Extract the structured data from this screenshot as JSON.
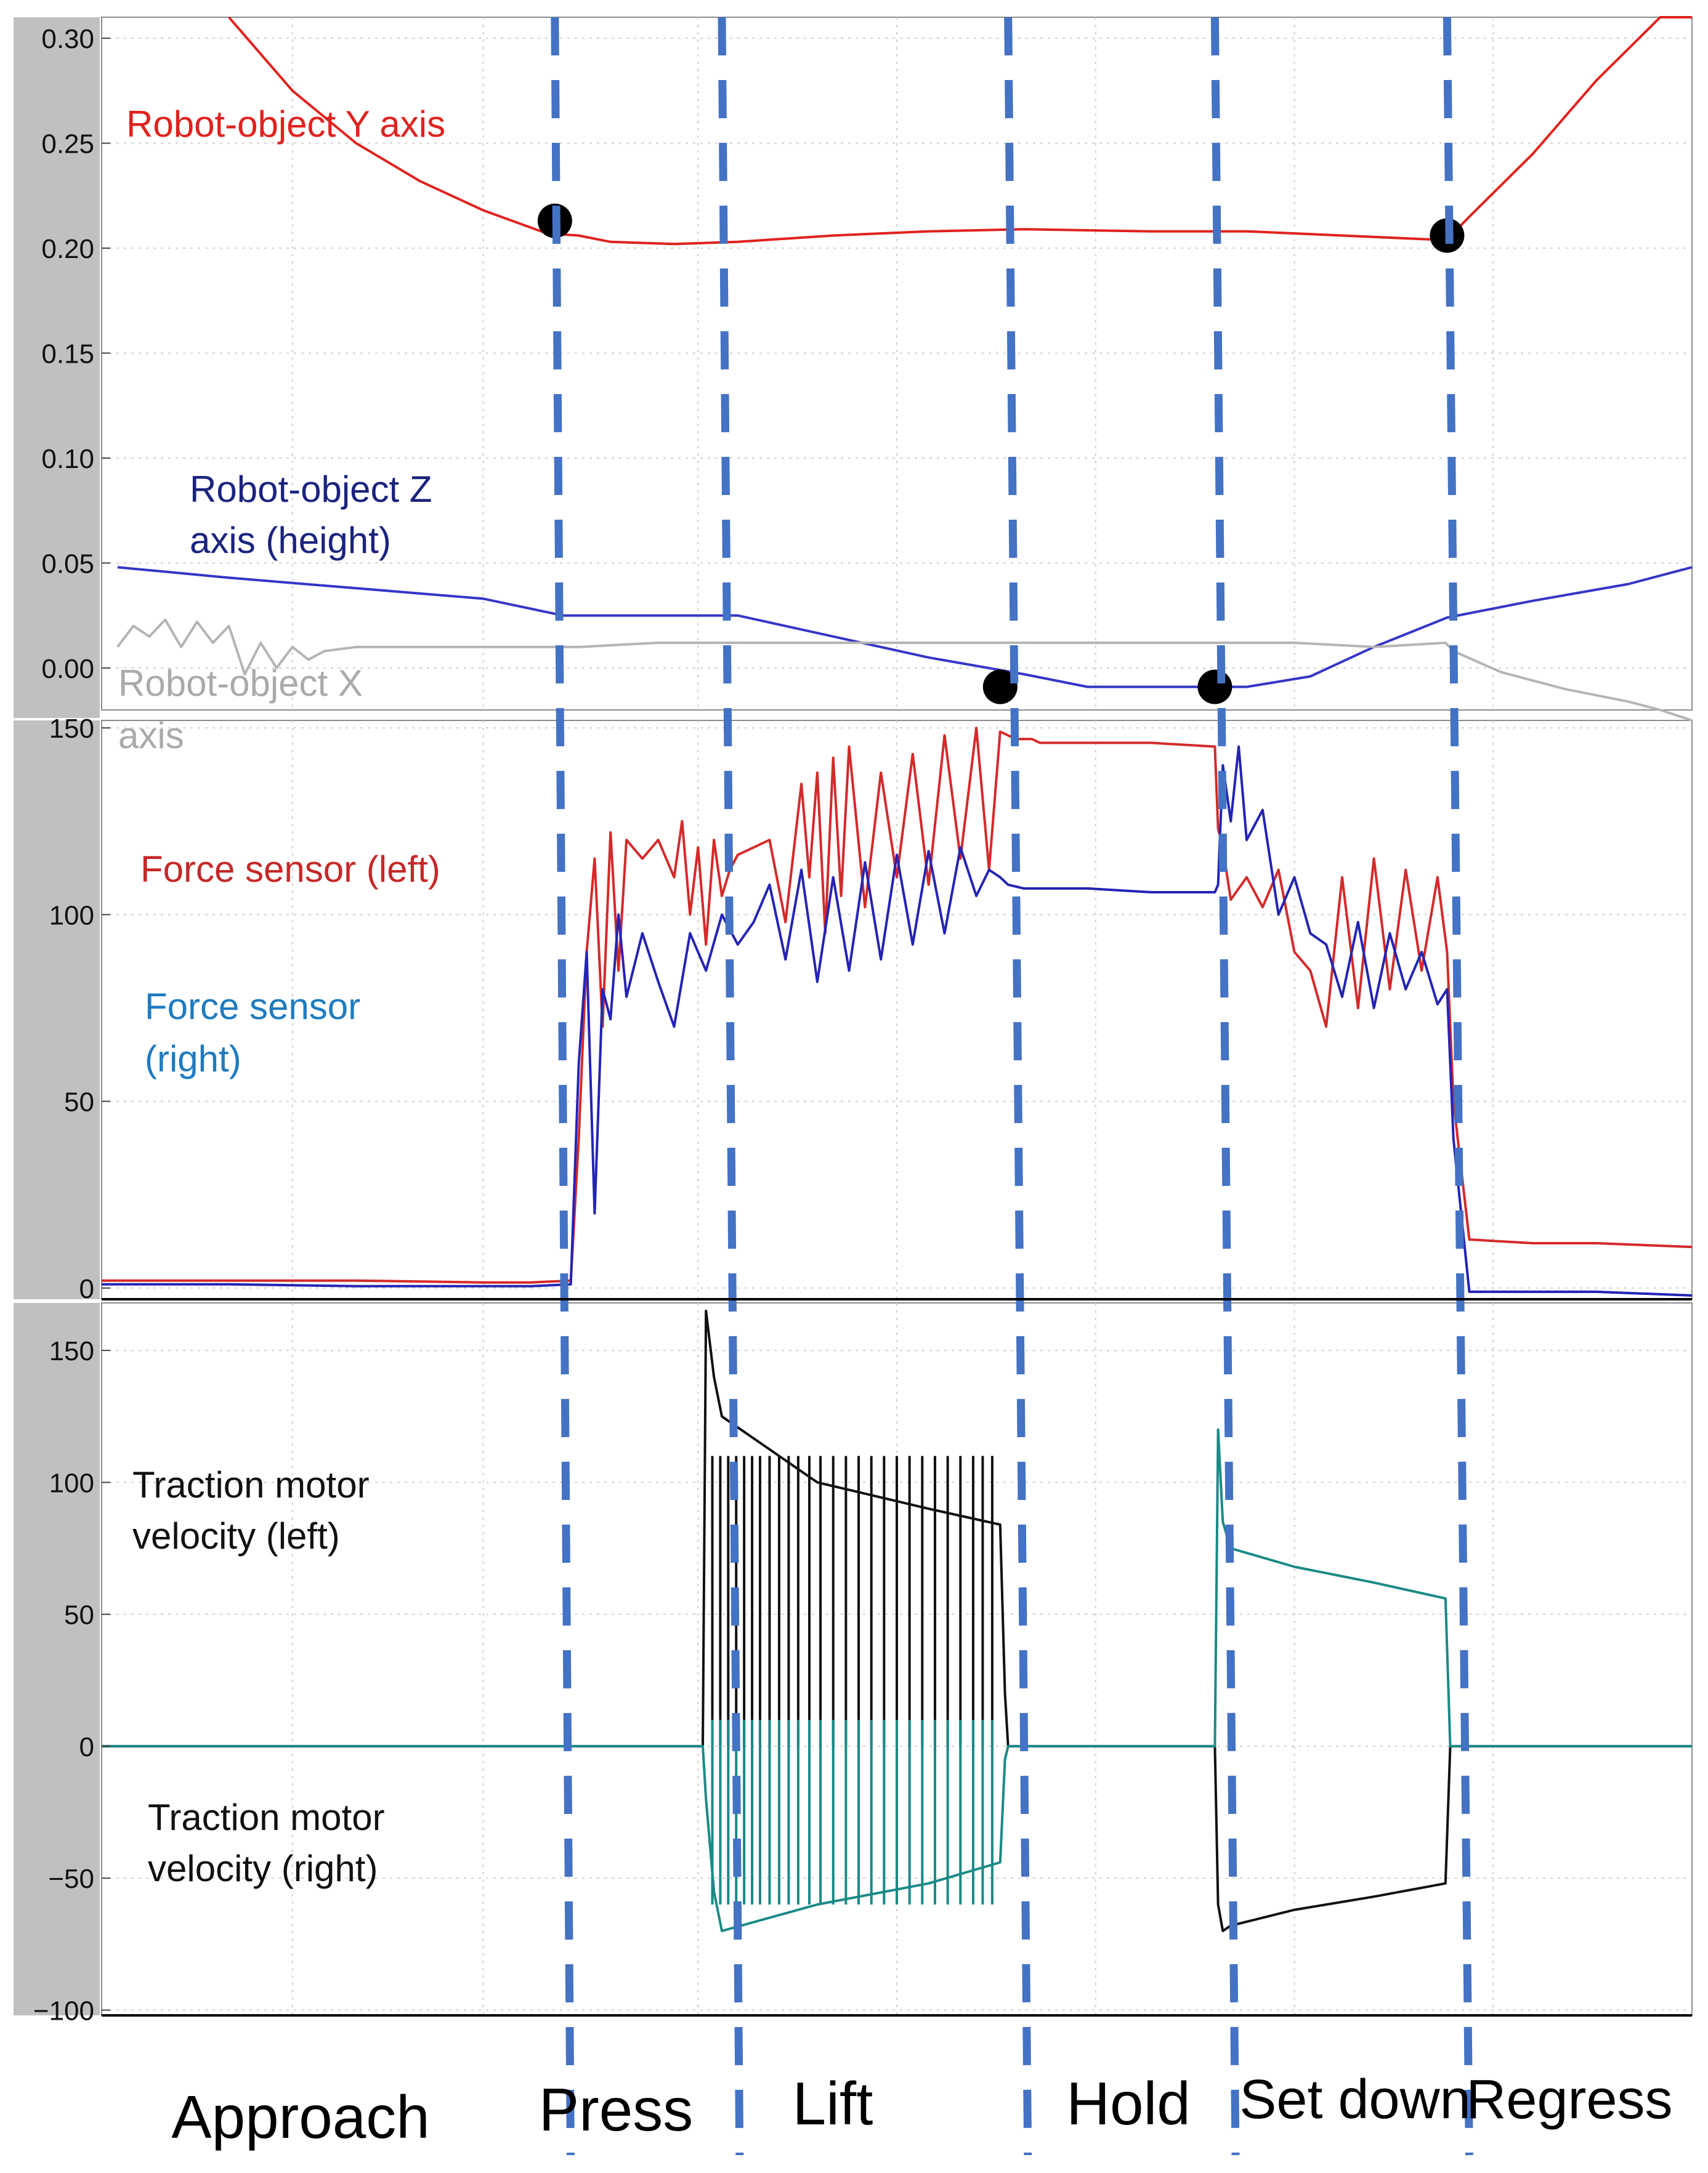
{
  "chart_data": [
    {
      "type": "line",
      "panel": "top",
      "xlim": [
        0,
        100
      ],
      "ylim": [
        -0.02,
        0.31
      ],
      "yticks": [
        "0.30",
        "0.25",
        "0.20",
        "0.15",
        "0.10",
        "0.05",
        "0.00"
      ],
      "ytick_values": [
        0.3,
        0.25,
        0.2,
        0.15,
        0.1,
        0.05,
        0.0
      ],
      "grid": true,
      "series": [
        {
          "name": "Robot-object Y axis",
          "label": "Robot-object Y axis",
          "color": "#e0221e",
          "x": [
            8,
            12,
            16,
            20,
            24,
            28,
            30,
            32,
            36,
            40,
            46,
            52,
            58,
            66,
            72,
            78,
            84,
            84.6,
            86,
            90,
            94,
            98,
            100
          ],
          "y": [
            0.31,
            0.275,
            0.25,
            0.232,
            0.218,
            0.207,
            0.206,
            0.203,
            0.202,
            0.203,
            0.206,
            0.208,
            0.209,
            0.208,
            0.208,
            0.206,
            0.204,
            0.204,
            0.215,
            0.245,
            0.28,
            0.31,
            0.31
          ]
        },
        {
          "name": "Robot-object Z axis (height)",
          "label_line1": "Robot-object Z",
          "label_line2": "axis  (height)",
          "color": "#3535c8",
          "x": [
            1,
            8,
            16,
            24,
            29,
            35,
            40,
            46,
            52,
            58,
            62,
            66,
            72,
            76,
            80,
            84.6,
            90,
            96,
            100
          ],
          "y": [
            0.048,
            0.043,
            0.038,
            0.033,
            0.025,
            0.025,
            0.025,
            0.015,
            0.005,
            -0.003,
            -0.009,
            -0.009,
            -0.009,
            -0.004,
            0.01,
            0.024,
            0.032,
            0.04,
            0.048
          ]
        },
        {
          "name": "Robot-object X axis",
          "label_line1": "Robot-object X",
          "label_line2": "axis",
          "color": "#b4b4b4",
          "x": [
            1,
            2,
            3,
            4,
            5,
            6,
            7,
            8,
            9,
            10,
            11,
            12,
            13,
            14,
            16,
            20,
            25,
            30,
            35,
            40,
            45,
            50,
            55,
            60,
            65,
            70,
            75,
            80,
            84.5,
            85,
            88,
            92,
            96,
            98,
            100
          ],
          "y": [
            0.01,
            0.02,
            0.015,
            0.023,
            0.01,
            0.022,
            0.012,
            0.02,
            -0.003,
            0.012,
            0.0,
            0.01,
            0.004,
            0.008,
            0.01,
            0.01,
            0.01,
            0.01,
            0.012,
            0.012,
            0.012,
            0.012,
            0.012,
            0.012,
            0.012,
            0.012,
            0.012,
            0.01,
            0.012,
            0.008,
            -0.002,
            -0.01,
            -0.016,
            -0.02,
            -0.025
          ]
        }
      ],
      "markers": [
        {
          "x": 28.5,
          "y": 0.213
        },
        {
          "x": 84.6,
          "y": 0.206
        },
        {
          "x": 56.5,
          "y": -0.009
        },
        {
          "x": 70,
          "y": -0.009
        }
      ]
    },
    {
      "type": "line",
      "panel": "middle",
      "xlim": [
        0,
        100
      ],
      "ylim": [
        -3,
        152
      ],
      "yticks": [
        "150",
        "100",
        "50",
        "0"
      ],
      "ytick_values": [
        150,
        100,
        50,
        0
      ],
      "grid": true,
      "series": [
        {
          "name": "Force sensor (left)",
          "label": "Force sensor (left)",
          "color": "#d42a2a",
          "x": [
            0,
            8,
            16,
            24,
            27,
            29.5,
            30.0,
            30.5,
            31.0,
            31.5,
            32.0,
            32.5,
            33.0,
            34,
            35,
            36,
            36.5,
            37,
            37.5,
            38,
            38.5,
            39,
            39.5,
            40,
            41,
            42,
            43,
            44,
            44.5,
            45,
            45.5,
            46,
            46.5,
            47,
            48,
            49,
            50,
            51,
            52,
            53,
            54,
            55,
            55.8,
            56.5,
            57,
            57.5,
            58,
            58.5,
            59,
            62,
            66,
            70,
            70.2,
            70.5,
            71,
            72,
            73,
            74,
            75,
            76,
            77,
            78,
            79,
            80,
            81,
            82,
            83,
            84,
            84.6,
            85,
            86,
            90,
            94,
            100
          ],
          "y": [
            2,
            2,
            2,
            1.5,
            1.5,
            2,
            40,
            90,
            115,
            70,
            122,
            85,
            120,
            115,
            120,
            110,
            125,
            100,
            118,
            92,
            120,
            105,
            112,
            116,
            118,
            120,
            98,
            135,
            110,
            138,
            95,
            142,
            105,
            145,
            102,
            138,
            110,
            143,
            108,
            148,
            115,
            150,
            112,
            149,
            148,
            147,
            147,
            147,
            146,
            146,
            146,
            145,
            123,
            118,
            104,
            110,
            102,
            112,
            90,
            85,
            70,
            110,
            75,
            115,
            80,
            112,
            85,
            110,
            90,
            50,
            13,
            12,
            12,
            11
          ]
        },
        {
          "name": "Force sensor (right)",
          "label_line1": "Force sensor",
          "label_line2": "(right)",
          "color": "#2424b4",
          "x": [
            0,
            8,
            16,
            24,
            27,
            29.5,
            30.0,
            30.5,
            31.0,
            31.5,
            32.0,
            32.5,
            33.0,
            34,
            35,
            36,
            37,
            38,
            39,
            40,
            41,
            42,
            43,
            44,
            45,
            46,
            47,
            48,
            49,
            50,
            51,
            52,
            53,
            54,
            55,
            55.8,
            56.5,
            57,
            58,
            62,
            66,
            70,
            70.2,
            70.5,
            71,
            71.5,
            72,
            73,
            74,
            75,
            76,
            77,
            78,
            79,
            80,
            81,
            82,
            83,
            84,
            84.6,
            85,
            86,
            90,
            94,
            100
          ],
          "y": [
            1,
            1,
            0.5,
            0.5,
            0.5,
            1,
            60,
            90,
            20,
            80,
            72,
            100,
            78,
            95,
            82,
            70,
            95,
            85,
            100,
            92,
            98,
            108,
            88,
            112,
            82,
            110,
            85,
            114,
            88,
            116,
            92,
            117,
            95,
            118,
            105,
            112,
            110,
            108,
            107,
            107,
            106,
            106,
            108,
            140,
            125,
            145,
            120,
            128,
            100,
            110,
            95,
            92,
            78,
            98,
            75,
            95,
            80,
            90,
            76,
            80,
            40,
            -1,
            -1,
            -1,
            -2
          ]
        }
      ]
    },
    {
      "type": "line",
      "panel": "bottom",
      "xlim": [
        0,
        100
      ],
      "ylim": [
        -102,
        168
      ],
      "yticks": [
        "150",
        "100",
        "50",
        "0",
        "−50",
        "−100"
      ],
      "ytick_values": [
        150,
        100,
        50,
        0,
        -50,
        -100
      ],
      "grid": true,
      "series": [
        {
          "name": "Traction motor velocity (left)",
          "label_line1": "Traction motor",
          "label_line2": "velocity  (left)",
          "color": "#111111",
          "x": [
            0,
            37.5,
            37.8,
            38,
            38.5,
            39,
            45,
            52,
            56.5,
            56.8,
            57,
            70,
            70.2,
            70.5,
            71,
            75,
            80,
            84.5,
            84.8,
            100
          ],
          "y": [
            0,
            0,
            0,
            165,
            140,
            125,
            100,
            90,
            84,
            20,
            0,
            0,
            -60,
            -70,
            -68,
            -62,
            -57,
            -52,
            0,
            0
          ],
          "spike_x": [
            38.4,
            38.9,
            39.4,
            39.9,
            40.4,
            40.9,
            41.4,
            42.0,
            42.6,
            43.2,
            43.8,
            44.5,
            45.2,
            46.0,
            46.8,
            47.6,
            48.4,
            49.2,
            50.0,
            50.8,
            51.6,
            52.4,
            53.2,
            54.0,
            54.8,
            55.4,
            56.0
          ],
          "spike_base": 0,
          "spike_top": 110
        },
        {
          "name": "Traction motor velocity (right)",
          "label_line1": "Traction motor",
          "label_line2": "velocity  (right)",
          "color": "#1a8a86",
          "x": [
            0,
            37.5,
            37.8,
            38,
            38.5,
            39,
            45,
            52,
            56.5,
            56.8,
            57,
            70,
            70.2,
            70.5,
            71,
            75,
            80,
            84.5,
            84.8,
            100
          ],
          "y": [
            0,
            0,
            0,
            -20,
            -55,
            -70,
            -60,
            -52,
            -44,
            -5,
            0,
            0,
            120,
            85,
            75,
            68,
            62,
            56,
            0,
            0
          ],
          "spike_x": [
            38.4,
            38.9,
            39.4,
            39.9,
            40.4,
            40.9,
            41.4,
            42.0,
            42.6,
            43.2,
            43.8,
            44.5,
            45.2,
            46.0,
            46.8,
            47.6,
            48.4,
            49.2,
            50.0,
            50.8,
            51.6,
            52.4,
            53.2,
            54.0,
            54.8,
            55.4,
            56.0
          ],
          "spike_base": -60,
          "spike_top": 10
        }
      ]
    }
  ],
  "phase_boundaries_x": [
    28.5,
    39.0,
    57.0,
    70.0,
    84.6
  ],
  "phases": [
    {
      "label": "Approach"
    },
    {
      "label": "Press"
    },
    {
      "label": "Lift"
    },
    {
      "label": "Hold"
    },
    {
      "label": "Set down"
    },
    {
      "label": "Regress"
    }
  ],
  "colors": {
    "divider": "#4472c4",
    "axis_gray": "#c0c0c0",
    "grid": "#d0d0d0"
  }
}
